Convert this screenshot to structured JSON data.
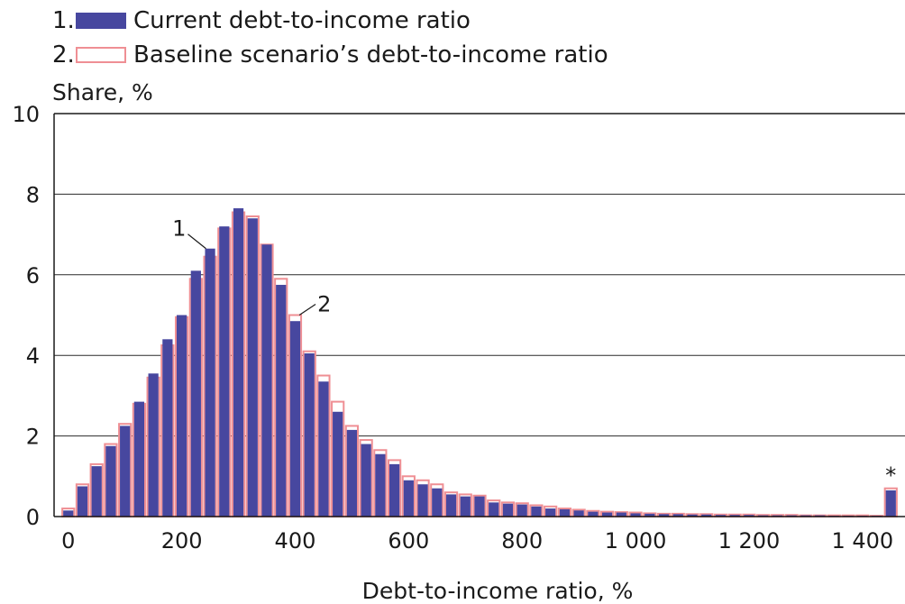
{
  "chart_data": {
    "type": "bar",
    "title": "",
    "xlabel": "Debt-to-income ratio, %",
    "ylabel": "Share, %",
    "ylim": [
      0,
      10
    ],
    "yticks": [
      "0",
      "2",
      "4",
      "6",
      "8",
      "10"
    ],
    "xlim": [
      -25,
      1475
    ],
    "xticks": [
      {
        "value": 0,
        "label": "0"
      },
      {
        "value": 200,
        "label": "200"
      },
      {
        "value": 400,
        "label": "400"
      },
      {
        "value": 600,
        "label": "600"
      },
      {
        "value": 800,
        "label": "800"
      },
      {
        "value": 1000,
        "label": "1 000"
      },
      {
        "value": 1200,
        "label": "1 200"
      },
      {
        "value": 1400,
        "label": "1 400"
      }
    ],
    "grid": "horizontal",
    "legend_position": "top-left",
    "bin_width": 25,
    "x": [
      0,
      25,
      50,
      75,
      100,
      125,
      150,
      175,
      200,
      225,
      250,
      275,
      300,
      325,
      350,
      375,
      400,
      425,
      450,
      475,
      500,
      525,
      550,
      575,
      600,
      625,
      650,
      675,
      700,
      725,
      750,
      775,
      800,
      825,
      850,
      875,
      900,
      925,
      950,
      975,
      1000,
      1025,
      1050,
      1075,
      1100,
      1125,
      1150,
      1175,
      1200,
      1225,
      1250,
      1275,
      1300,
      1325,
      1350,
      1375,
      1400,
      1425,
      1450
    ],
    "series": [
      {
        "name": "Current debt-to-income ratio",
        "color": "#47479f",
        "values": [
          0.15,
          0.75,
          1.25,
          1.75,
          2.25,
          2.85,
          3.55,
          4.4,
          5.0,
          6.1,
          6.65,
          7.2,
          7.65,
          7.4,
          6.75,
          5.75,
          4.85,
          4.05,
          3.35,
          2.6,
          2.15,
          1.8,
          1.55,
          1.3,
          0.9,
          0.8,
          0.7,
          0.55,
          0.5,
          0.5,
          0.35,
          0.32,
          0.3,
          0.25,
          0.2,
          0.18,
          0.15,
          0.12,
          0.1,
          0.1,
          0.08,
          0.07,
          0.06,
          0.06,
          0.05,
          0.05,
          0.04,
          0.04,
          0.04,
          0.03,
          0.03,
          0.03,
          0.03,
          0.03,
          0.02,
          0.02,
          0.02,
          0.02,
          0.65
        ]
      },
      {
        "name": "Baseline scenario’s debt-to-income ratio",
        "color": "#ef8f94",
        "values": [
          0.2,
          0.8,
          1.3,
          1.8,
          2.3,
          2.8,
          3.45,
          4.25,
          4.95,
          5.9,
          6.45,
          7.15,
          7.55,
          7.45,
          6.75,
          5.9,
          5.0,
          4.1,
          3.5,
          2.85,
          2.25,
          1.9,
          1.65,
          1.4,
          1.0,
          0.9,
          0.8,
          0.6,
          0.55,
          0.52,
          0.4,
          0.35,
          0.33,
          0.28,
          0.25,
          0.2,
          0.17,
          0.14,
          0.12,
          0.11,
          0.1,
          0.08,
          0.07,
          0.07,
          0.06,
          0.06,
          0.05,
          0.05,
          0.05,
          0.04,
          0.04,
          0.04,
          0.03,
          0.03,
          0.03,
          0.03,
          0.03,
          0.02,
          0.7
        ]
      }
    ],
    "annotations": [
      {
        "text": "1",
        "series": 0,
        "bin": 10
      },
      {
        "text": "2",
        "series": 1,
        "bin": 16
      },
      {
        "text": "*",
        "bin": 58
      }
    ]
  },
  "legend": {
    "items": [
      {
        "number": "1.",
        "label": "Current debt-to-income ratio"
      },
      {
        "number": "2.",
        "label": "Baseline scenario’s debt-to-income ratio"
      }
    ]
  }
}
